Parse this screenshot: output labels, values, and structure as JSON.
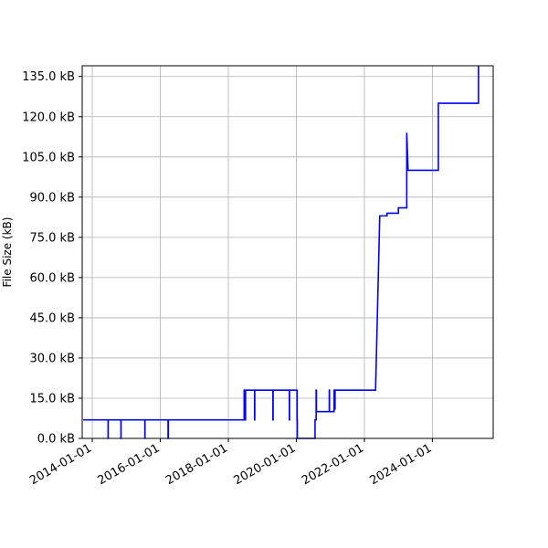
{
  "chart_data": {
    "type": "line",
    "title": "",
    "xlabel": "",
    "ylabel": "File Size (kB)",
    "grid": true,
    "legend": "none",
    "x_axis_type": "date",
    "xlim": [
      "2013-09-15",
      "2025-10-15"
    ],
    "ylim": [
      0,
      139
    ],
    "yticks": [
      0,
      15,
      30,
      45,
      60,
      75,
      90,
      105,
      120,
      135
    ],
    "ytick_labels": [
      "0.0 kB",
      "15.0 kB",
      "30.0 kB",
      "45.0 kB",
      "60.0 kB",
      "75.0 kB",
      "90.0 kB",
      "105.0 kB",
      "120.0 kB",
      "135.0 kB"
    ],
    "xticks": [
      "2014-01-01",
      "2016-01-01",
      "2018-01-01",
      "2020-01-01",
      "2022-01-01",
      "2024-01-01"
    ],
    "xtick_labels": [
      "2014-01-01",
      "2016-01-01",
      "2018-01-01",
      "2020-01-01",
      "2022-01-01",
      "2024-01-01"
    ],
    "series": [
      {
        "color": "#0000ff",
        "x": [
          "2013-09-25",
          "2014-06-20",
          "2014-06-20",
          "2014-06-21",
          "2014-06-21",
          "2014-11-05",
          "2014-11-05",
          "2014-11-06",
          "2014-11-06",
          "2015-07-20",
          "2015-07-20",
          "2015-07-21",
          "2015-07-21",
          "2016-03-25",
          "2016-03-25",
          "2016-03-28",
          "2016-03-28",
          "2018-06-20",
          "2018-06-20",
          "2018-06-23",
          "2018-06-23",
          "2018-06-26",
          "2018-06-26",
          "2018-07-02",
          "2018-07-02",
          "2018-07-05",
          "2018-07-05",
          "2018-10-10",
          "2018-10-10",
          "2018-10-12",
          "2018-10-12",
          "2019-04-25",
          "2019-04-25",
          "2019-04-27",
          "2019-04-27",
          "2019-10-18",
          "2019-10-18",
          "2019-10-20",
          "2019-10-20",
          "2020-01-10",
          "2020-01-10",
          "2020-01-12",
          "2020-01-12",
          "2020-07-20",
          "2020-07-20",
          "2020-08-01",
          "2020-08-01",
          "2020-08-04",
          "2020-08-04",
          "2020-12-20",
          "2020-12-20",
          "2020-12-22",
          "2020-12-22",
          "2021-02-10",
          "2021-02-10",
          "2021-02-15",
          "2021-02-15",
          "2021-02-20",
          "2021-02-20",
          "2022-05-01",
          "2022-06-15",
          "2022-09-01",
          "2022-09-01",
          "2023-01-01",
          "2023-01-01",
          "2023-04-01",
          "2023-04-01",
          "2023-04-15",
          "2023-04-20",
          "2024-03-05",
          "2024-03-05",
          "2025-05-10",
          "2025-05-10"
        ],
        "y": [
          6.9,
          6.9,
          0,
          0,
          6.9,
          6.9,
          0,
          0,
          6.9,
          6.9,
          0,
          0,
          6.9,
          6.9,
          0,
          0,
          6.9,
          6.9,
          18,
          18,
          6.9,
          6.9,
          18,
          18,
          6.9,
          6.9,
          18,
          18,
          6.9,
          6.9,
          18,
          18,
          6.9,
          6.9,
          18,
          18,
          6.9,
          6.9,
          18,
          18,
          6.9,
          6.9,
          0,
          0,
          6.9,
          6.9,
          18,
          18,
          10,
          10,
          18,
          18,
          10,
          10,
          18,
          18,
          11,
          11,
          18,
          18,
          83,
          83,
          84,
          84,
          86,
          86,
          114,
          100,
          100,
          100,
          125,
          125,
          139
        ]
      }
    ]
  }
}
